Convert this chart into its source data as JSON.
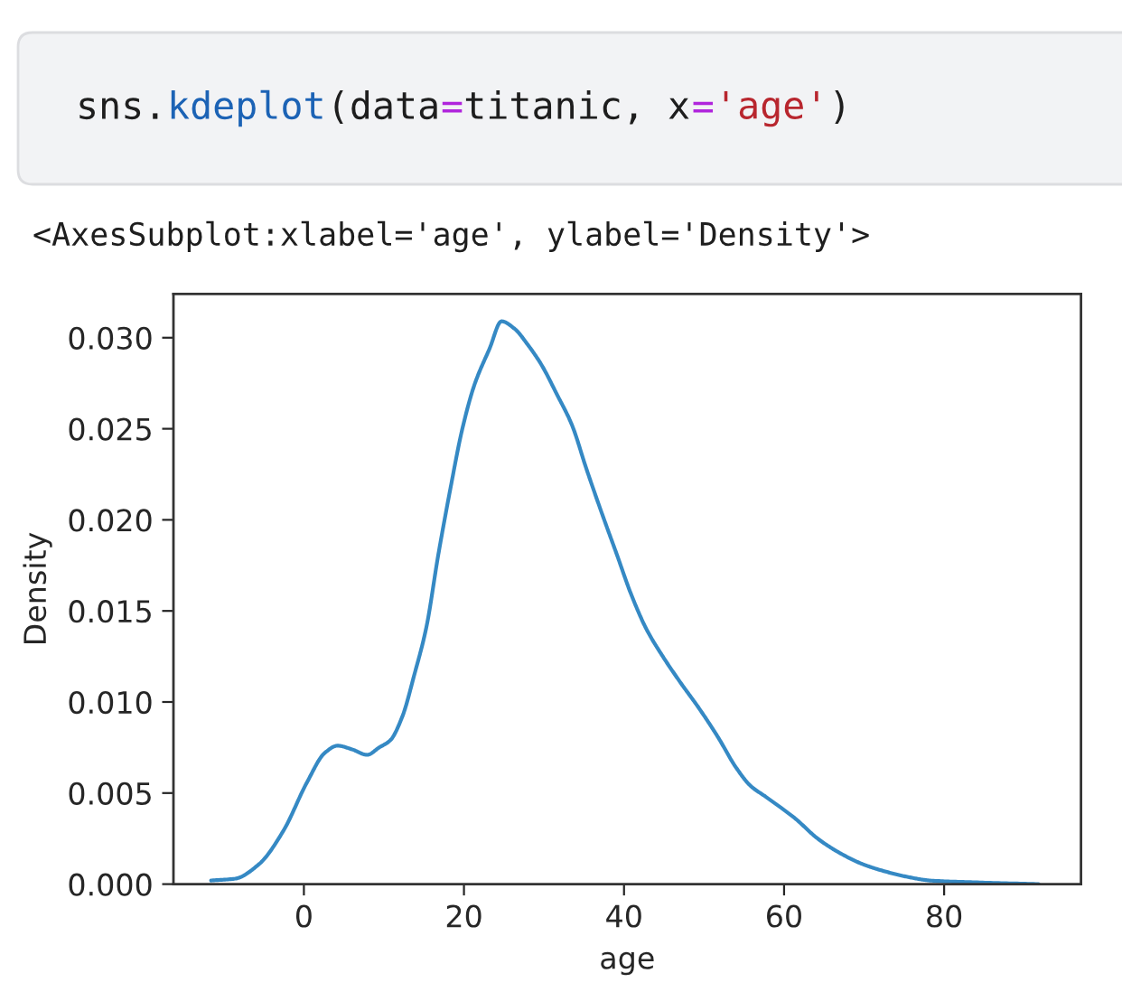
{
  "chart_data": {
    "type": "line",
    "xlabel": "age",
    "ylabel": "Density",
    "annotations": [
      "sns.kdeplot(data=titanic, x='age')",
      "<AxesSubplot:xlabel='age', ylabel='Density'>"
    ],
    "x": [
      -11.6,
      -8.6,
      -5.6,
      -2.6,
      0.4,
      2.6,
      4.2,
      6.0,
      7.9,
      9.4,
      10.8,
      12.3,
      13.8,
      15.3,
      16.8,
      18.3,
      19.8,
      21.3,
      23.2,
      24.7,
      26.3,
      28.0,
      29.7,
      31.6,
      33.5,
      35.3,
      37.2,
      39.1,
      40.9,
      42.8,
      44.7,
      47.0,
      49.3,
      51.7,
      54.0,
      55.8,
      57.7,
      59.6,
      61.4,
      64.2,
      67.0,
      69.8,
      72.6,
      75.4,
      78.2,
      83.8,
      91.8
    ],
    "series": [
      {
        "color": "#3589c4",
        "values": [
          0.0002,
          0.0003,
          0.0011,
          0.0029,
          0.0056,
          0.0072,
          0.0076,
          0.0074,
          0.0071,
          0.0075,
          0.0079,
          0.0092,
          0.0115,
          0.0141,
          0.0181,
          0.0217,
          0.025,
          0.0274,
          0.0294,
          0.0309,
          0.0305,
          0.0296,
          0.0285,
          0.0269,
          0.0252,
          0.0228,
          0.0204,
          0.0181,
          0.0159,
          0.014,
          0.0126,
          0.0111,
          0.0097,
          0.0081,
          0.0064,
          0.0054,
          0.0048,
          0.0042,
          0.0036,
          0.0025,
          0.0017,
          0.0011,
          0.0007,
          0.0004,
          0.0002,
          0.0001,
          0.0
        ]
      }
    ],
    "xlim": [
      -16.3,
      97.1
    ],
    "ylim": [
      0,
      0.0324
    ],
    "xticks": [
      0,
      20,
      40,
      60,
      80
    ],
    "yticks": [
      {
        "value": 0,
        "label": "0.000"
      },
      {
        "value": 0.005,
        "label": "0.005"
      },
      {
        "value": 0.01,
        "label": "0.010"
      },
      {
        "value": 0.015,
        "label": "0.015"
      },
      {
        "value": 0.02,
        "label": "0.020"
      },
      {
        "value": 0.025,
        "label": "0.025"
      },
      {
        "value": 0.03,
        "label": "0.030"
      }
    ],
    "grid": false,
    "line_style": "solid"
  }
}
